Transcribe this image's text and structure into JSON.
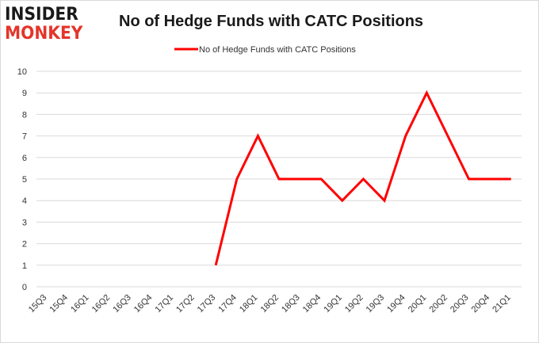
{
  "logo": {
    "line1": "INSIDER",
    "line2": "MONKEY"
  },
  "chart_data": {
    "type": "line",
    "title": "No of Hedge Funds with CATC Positions",
    "xlabel": "",
    "ylabel": "",
    "categories": [
      "15Q3",
      "15Q4",
      "16Q1",
      "16Q2",
      "16Q3",
      "16Q4",
      "17Q1",
      "17Q2",
      "17Q3",
      "17Q4",
      "18Q1",
      "18Q2",
      "18Q3",
      "18Q4",
      "19Q1",
      "19Q2",
      "19Q3",
      "19Q4",
      "20Q1",
      "20Q2",
      "20Q3",
      "20Q4",
      "21Q1"
    ],
    "series": [
      {
        "name": "No of Hedge Funds with CATC Positions",
        "color": "#ff0000",
        "values": [
          null,
          null,
          null,
          null,
          null,
          null,
          null,
          null,
          1,
          5,
          7,
          5,
          5,
          5,
          4,
          5,
          4,
          7,
          9,
          7,
          5,
          5,
          5
        ]
      }
    ],
    "ylim": [
      0,
      10
    ],
    "yticks": [
      0,
      1,
      2,
      3,
      4,
      5,
      6,
      7,
      8,
      9,
      10
    ],
    "grid": true,
    "legend": "top-center"
  }
}
